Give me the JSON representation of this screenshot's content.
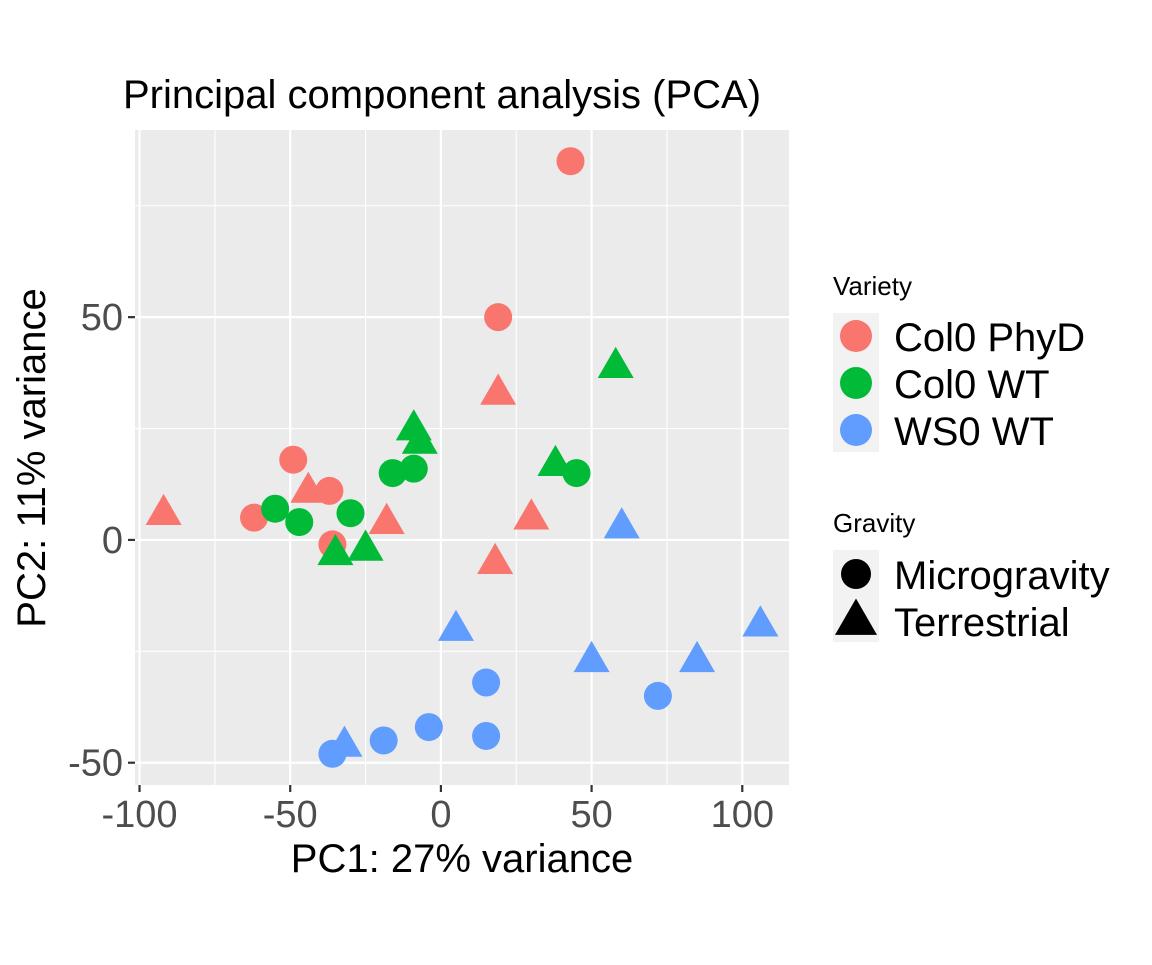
{
  "chart_data": {
    "type": "scatter",
    "title": "Principal component analysis (PCA)",
    "xlabel": "PC1: 27% variance",
    "ylabel": "PC2: 11% variance",
    "xlim": [
      -101.5,
      115.5
    ],
    "ylim": [
      -55,
      92
    ],
    "xticks": [
      -100,
      -50,
      0,
      50,
      100
    ],
    "xtick_labels": [
      "-100",
      "-50",
      "0",
      "50",
      "100"
    ],
    "yticks": [
      -50,
      0,
      50
    ],
    "ytick_labels": [
      "-50",
      "0",
      "50"
    ],
    "grid": true,
    "legend_position": "right",
    "legends": [
      {
        "title": "Variety",
        "items": [
          {
            "label": "Col0 PhyD",
            "color": "#F8766D"
          },
          {
            "label": "Col0 WT",
            "color": "#00BA38"
          },
          {
            "label": "WS0 WT",
            "color": "#619CFF"
          }
        ]
      },
      {
        "title": "Gravity",
        "items": [
          {
            "label": "Microgravity",
            "shape": "circle"
          },
          {
            "label": "Terrestrial",
            "shape": "triangle"
          }
        ]
      }
    ],
    "colors": {
      "Col0 PhyD": "#F8766D",
      "Col0 WT": "#00BA38",
      "WS0 WT": "#619CFF"
    },
    "points": [
      {
        "variety": "Col0 PhyD",
        "gravity": "Microgravity",
        "x": 43,
        "y": 85
      },
      {
        "variety": "Col0 PhyD",
        "gravity": "Microgravity",
        "x": 19,
        "y": 50
      },
      {
        "variety": "Col0 PhyD",
        "gravity": "Microgravity",
        "x": -49,
        "y": 18
      },
      {
        "variety": "Col0 PhyD",
        "gravity": "Microgravity",
        "x": -37,
        "y": 11
      },
      {
        "variety": "Col0 PhyD",
        "gravity": "Microgravity",
        "x": -62,
        "y": 5
      },
      {
        "variety": "Col0 PhyD",
        "gravity": "Microgravity",
        "x": -36,
        "y": -1
      },
      {
        "variety": "Col0 PhyD",
        "gravity": "Terrestrial",
        "x": 19,
        "y": 33
      },
      {
        "variety": "Col0 PhyD",
        "gravity": "Terrestrial",
        "x": -92,
        "y": 6
      },
      {
        "variety": "Col0 PhyD",
        "gravity": "Terrestrial",
        "x": -44,
        "y": 11
      },
      {
        "variety": "Col0 PhyD",
        "gravity": "Terrestrial",
        "x": -18,
        "y": 4
      },
      {
        "variety": "Col0 PhyD",
        "gravity": "Terrestrial",
        "x": 30,
        "y": 5
      },
      {
        "variety": "Col0 PhyD",
        "gravity": "Terrestrial",
        "x": 18,
        "y": -5
      },
      {
        "variety": "Col0 WT",
        "gravity": "Microgravity",
        "x": -16,
        "y": 15
      },
      {
        "variety": "Col0 WT",
        "gravity": "Microgravity",
        "x": -9,
        "y": 16
      },
      {
        "variety": "Col0 WT",
        "gravity": "Microgravity",
        "x": 45,
        "y": 15
      },
      {
        "variety": "Col0 WT",
        "gravity": "Microgravity",
        "x": -55,
        "y": 7
      },
      {
        "variety": "Col0 WT",
        "gravity": "Microgravity",
        "x": -47,
        "y": 4
      },
      {
        "variety": "Col0 WT",
        "gravity": "Microgravity",
        "x": -30,
        "y": 6
      },
      {
        "variety": "Col0 WT",
        "gravity": "Terrestrial",
        "x": 58,
        "y": 39
      },
      {
        "variety": "Col0 WT",
        "gravity": "Terrestrial",
        "x": -9,
        "y": 25
      },
      {
        "variety": "Col0 WT",
        "gravity": "Terrestrial",
        "x": -7,
        "y": 22
      },
      {
        "variety": "Col0 WT",
        "gravity": "Terrestrial",
        "x": 38,
        "y": 17
      },
      {
        "variety": "Col0 WT",
        "gravity": "Terrestrial",
        "x": -35,
        "y": -3
      },
      {
        "variety": "Col0 WT",
        "gravity": "Terrestrial",
        "x": -25,
        "y": -2
      },
      {
        "variety": "WS0 WT",
        "gravity": "Microgravity",
        "x": 15,
        "y": -32
      },
      {
        "variety": "WS0 WT",
        "gravity": "Microgravity",
        "x": 72,
        "y": -35
      },
      {
        "variety": "WS0 WT",
        "gravity": "Microgravity",
        "x": -4,
        "y": -42
      },
      {
        "variety": "WS0 WT",
        "gravity": "Microgravity",
        "x": 15,
        "y": -44
      },
      {
        "variety": "WS0 WT",
        "gravity": "Microgravity",
        "x": -19,
        "y": -45
      },
      {
        "variety": "WS0 WT",
        "gravity": "Microgravity",
        "x": -36,
        "y": -48
      },
      {
        "variety": "WS0 WT",
        "gravity": "Terrestrial",
        "x": 60,
        "y": 3
      },
      {
        "variety": "WS0 WT",
        "gravity": "Terrestrial",
        "x": 5,
        "y": -20
      },
      {
        "variety": "WS0 WT",
        "gravity": "Terrestrial",
        "x": 106,
        "y": -19
      },
      {
        "variety": "WS0 WT",
        "gravity": "Terrestrial",
        "x": 50,
        "y": -27
      },
      {
        "variety": "WS0 WT",
        "gravity": "Terrestrial",
        "x": 85,
        "y": -27
      },
      {
        "variety": "WS0 WT",
        "gravity": "Terrestrial",
        "x": -32,
        "y": -46
      }
    ]
  }
}
